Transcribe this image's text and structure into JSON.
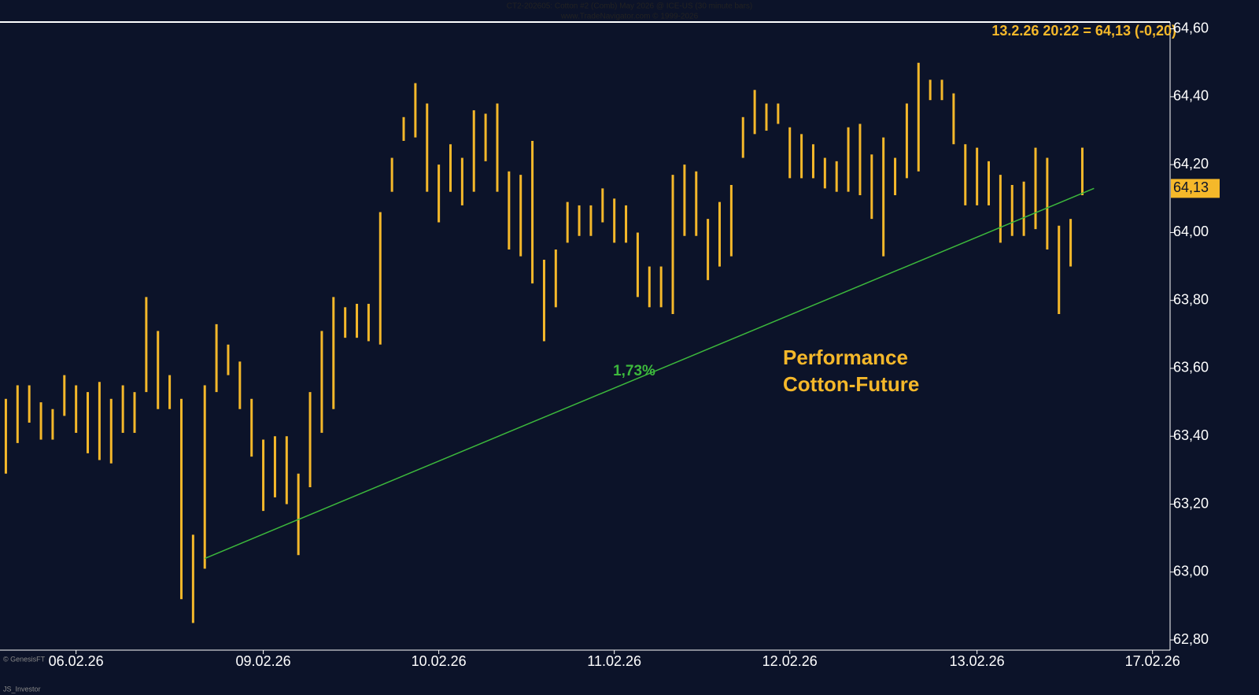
{
  "chart_data": {
    "type": "ohlc",
    "header": [
      "CT2-202605: Cotton #2 (Comb) May 2026 @ ICE-US (30 minute bars)",
      "www.TradeNavigator.com © 1999-2026"
    ],
    "price_info": "13.2.26 20:22 = 64,13 (-0,20)",
    "annotation": "Performance\nCotton-Future",
    "footer": [
      "© GenesisFT",
      "JS_Investor"
    ],
    "categories": [
      null,
      null,
      null,
      null,
      null,
      null,
      "06.02.26",
      null,
      null,
      null,
      null,
      null,
      null,
      null,
      null,
      null,
      null,
      null,
      null,
      null,
      null,
      null,
      "09.02.26",
      null,
      null,
      null,
      null,
      null,
      null,
      null,
      null,
      null,
      null,
      null,
      null,
      null,
      null,
      "10.02.26",
      null,
      null,
      null,
      null,
      null,
      null,
      null,
      null,
      null,
      null,
      null,
      null,
      null,
      null,
      "11.02.26",
      null,
      null,
      null,
      null,
      null,
      null,
      null,
      null,
      null,
      null,
      null,
      null,
      null,
      null,
      "12.02.26",
      null,
      null,
      null,
      null,
      null,
      null,
      null,
      null,
      null,
      null,
      null,
      null,
      null,
      null,
      null,
      "13.02.26",
      null,
      null,
      null,
      null,
      null,
      null,
      null,
      null,
      null,
      null,
      null,
      null,
      null,
      null,
      "17.02.26",
      null
    ],
    "series": [
      {
        "color": "#f5b82a",
        "high": [
          63.51,
          63.55,
          63.55,
          63.5,
          63.48,
          63.58,
          63.55,
          63.53,
          63.56,
          63.51,
          63.55,
          63.53,
          63.81,
          63.71,
          63.58,
          63.51,
          63.11,
          63.55,
          63.73,
          63.67,
          63.62,
          63.51,
          63.39,
          63.4,
          63.4,
          63.29,
          63.53,
          63.71,
          63.81,
          63.78,
          63.79,
          63.79,
          64.06,
          64.22,
          64.34,
          64.44,
          64.38,
          64.2,
          64.26,
          64.22,
          64.36,
          64.35,
          64.38,
          64.18,
          64.17,
          64.27,
          63.92,
          63.95,
          64.09,
          64.08,
          64.08,
          64.13,
          64.1,
          64.08,
          64.0,
          63.9,
          63.9,
          64.17,
          64.2,
          64.18,
          64.04,
          64.09,
          64.14,
          64.34,
          64.42,
          64.38,
          64.38,
          64.31,
          64.29,
          64.26,
          64.22,
          64.21,
          64.31,
          64.32,
          64.23,
          64.28,
          64.22,
          64.38,
          64.5,
          64.45,
          64.45,
          64.41,
          64.26,
          64.25,
          64.21,
          64.17,
          64.14,
          64.15,
          64.25,
          64.22,
          64.02,
          64.04,
          64.25
        ],
        "low": [
          63.29,
          63.38,
          63.44,
          63.39,
          63.39,
          63.46,
          63.41,
          63.35,
          63.33,
          63.32,
          63.41,
          63.41,
          63.53,
          63.48,
          63.48,
          62.92,
          62.85,
          63.01,
          63.53,
          63.58,
          63.48,
          63.34,
          63.18,
          63.22,
          63.2,
          63.05,
          63.25,
          63.41,
          63.48,
          63.69,
          63.69,
          63.68,
          63.67,
          64.12,
          64.27,
          64.28,
          64.12,
          64.03,
          64.12,
          64.08,
          64.12,
          64.21,
          64.12,
          63.95,
          63.93,
          63.85,
          63.68,
          63.78,
          63.97,
          63.99,
          63.99,
          64.03,
          63.97,
          63.97,
          63.81,
          63.78,
          63.78,
          63.76,
          63.99,
          63.99,
          63.86,
          63.9,
          63.93,
          64.22,
          64.29,
          64.3,
          64.32,
          64.16,
          64.16,
          64.16,
          64.13,
          64.12,
          64.12,
          64.11,
          64.04,
          63.93,
          64.11,
          64.16,
          64.18,
          64.39,
          64.39,
          64.26,
          64.08,
          64.08,
          64.08,
          63.97,
          63.99,
          63.99,
          64.01,
          63.95,
          63.76,
          63.9,
          64.11
        ]
      }
    ],
    "trendline": {
      "label": "1,73%",
      "color": "#3cb83c",
      "x": [
        17,
        93
      ],
      "values": [
        63.04,
        64.13
      ]
    },
    "last_value": {
      "value": 64.13,
      "label": "64,13"
    },
    "ylim": [
      62.77,
      64.62
    ],
    "yticks": [
      {
        "value": 62.8,
        "label": "62,80"
      },
      {
        "value": 63.0,
        "label": "63,00"
      },
      {
        "value": 63.2,
        "label": "63,20"
      },
      {
        "value": 63.4,
        "label": "63,40"
      },
      {
        "value": 63.6,
        "label": "63,60"
      },
      {
        "value": 63.8,
        "label": "63,80"
      },
      {
        "value": 64.0,
        "label": "64,00"
      },
      {
        "value": 64.2,
        "label": "64,20"
      },
      {
        "value": 64.4,
        "label": "64,40"
      },
      {
        "value": 64.6,
        "label": "64,60"
      }
    ]
  }
}
